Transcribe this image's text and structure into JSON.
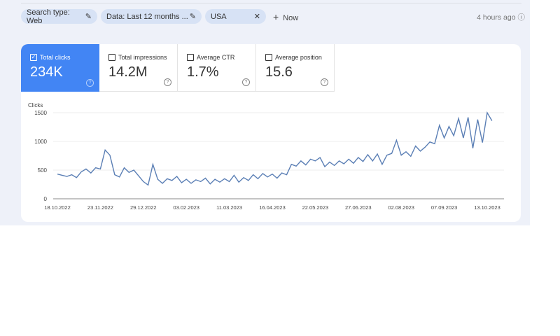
{
  "filters": [
    {
      "label": "Search type: Web",
      "icon": "pencil-icon"
    },
    {
      "label": "Data: Last 12 months ...",
      "icon": "pencil-icon"
    },
    {
      "label": "USA",
      "icon": "close-icon"
    }
  ],
  "new_label": "Now",
  "updated": "4 hours ago",
  "metrics": [
    {
      "label": "Total clicks",
      "value": "234K",
      "active": true
    },
    {
      "label": "Total impressions",
      "value": "14.2M",
      "active": false
    },
    {
      "label": "Average CTR",
      "value": "1.7%",
      "active": false
    },
    {
      "label": "Average position",
      "value": "15.6",
      "active": false
    }
  ],
  "colors": {
    "accent": "#4285f4",
    "line": "#5b7fb5"
  },
  "chart_data": {
    "type": "line",
    "ylabel": "Clicks",
    "ylim": [
      0,
      1500
    ],
    "yticks": [
      "0",
      "500",
      "1000",
      "1500"
    ],
    "xticks": [
      "18.10.2022",
      "23.11.2022",
      "29.12.2022",
      "03.02.2023",
      "11.03.2023",
      "16.04.2023",
      "22.05.2023",
      "27.06.2023",
      "02.08.2023",
      "07.09.2023",
      "13.10.2023"
    ],
    "start": "18.10.2022",
    "step_days": 4,
    "grid": true,
    "series": [
      {
        "values": [
          430,
          410,
          390,
          420,
          370,
          470,
          520,
          450,
          540,
          520,
          850,
          760,
          420,
          380,
          540,
          460,
          500,
          400,
          300,
          240,
          600,
          340,
          270,
          350,
          320,
          390,
          280,
          340,
          270,
          330,
          300,
          360,
          260,
          340,
          290,
          350,
          300,
          410,
          290,
          370,
          320,
          420,
          350,
          440,
          380,
          430,
          360,
          450,
          420,
          600,
          570,
          660,
          590,
          690,
          660,
          720,
          560,
          640,
          580,
          660,
          610,
          690,
          620,
          720,
          650,
          770,
          660,
          780,
          600,
          760,
          790,
          1020,
          760,
          820,
          740,
          920,
          830,
          900,
          990,
          960,
          1280,
          1060,
          1260,
          1100,
          1400,
          1060,
          1420,
          880,
          1380,
          980,
          1500,
          1360
        ]
      }
    ]
  }
}
